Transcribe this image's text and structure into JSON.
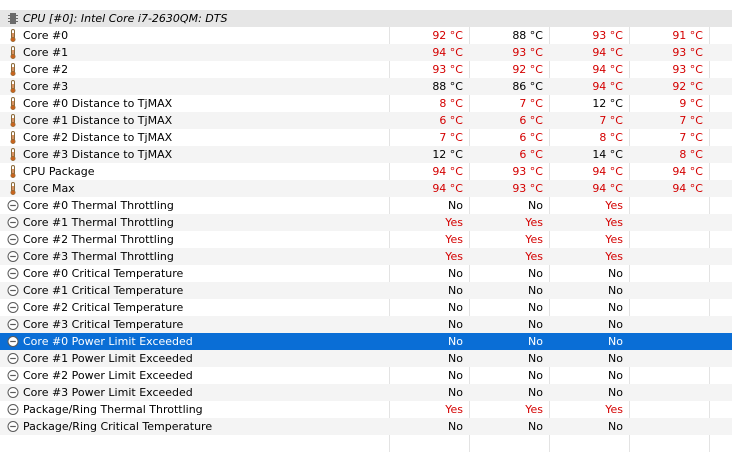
{
  "header": {
    "title": "CPU [#0]: Intel Core i7-2630QM: DTS",
    "icon": "chip-icon"
  },
  "rows": [
    {
      "label": "Core #0",
      "icon": "thermometer-icon",
      "values": [
        "92 °C",
        "88 °C",
        "93 °C",
        "91 °C"
      ],
      "red": [
        true,
        false,
        true,
        true
      ]
    },
    {
      "label": "Core #1",
      "icon": "thermometer-icon",
      "values": [
        "94 °C",
        "93 °C",
        "94 °C",
        "93 °C"
      ],
      "red": [
        true,
        true,
        true,
        true
      ]
    },
    {
      "label": "Core #2",
      "icon": "thermometer-icon",
      "values": [
        "93 °C",
        "92 °C",
        "94 °C",
        "93 °C"
      ],
      "red": [
        true,
        true,
        true,
        true
      ]
    },
    {
      "label": "Core #3",
      "icon": "thermometer-icon",
      "values": [
        "88 °C",
        "86 °C",
        "94 °C",
        "92 °C"
      ],
      "red": [
        false,
        false,
        true,
        true
      ]
    },
    {
      "label": "Core #0 Distance to TjMAX",
      "icon": "thermometer-icon",
      "values": [
        "8 °C",
        "7 °C",
        "12 °C",
        "9 °C"
      ],
      "red": [
        true,
        true,
        false,
        true
      ]
    },
    {
      "label": "Core #1 Distance to TjMAX",
      "icon": "thermometer-icon",
      "values": [
        "6 °C",
        "6 °C",
        "7 °C",
        "7 °C"
      ],
      "red": [
        true,
        true,
        true,
        true
      ]
    },
    {
      "label": "Core #2 Distance to TjMAX",
      "icon": "thermometer-icon",
      "values": [
        "7 °C",
        "6 °C",
        "8 °C",
        "7 °C"
      ],
      "red": [
        true,
        true,
        true,
        true
      ]
    },
    {
      "label": "Core #3 Distance to TjMAX",
      "icon": "thermometer-icon",
      "values": [
        "12 °C",
        "6 °C",
        "14 °C",
        "8 °C"
      ],
      "red": [
        false,
        true,
        false,
        true
      ]
    },
    {
      "label": "CPU Package",
      "icon": "thermometer-icon",
      "values": [
        "94 °C",
        "93 °C",
        "94 °C",
        "94 °C"
      ],
      "red": [
        true,
        true,
        true,
        true
      ]
    },
    {
      "label": "Core Max",
      "icon": "thermometer-icon",
      "values": [
        "94 °C",
        "93 °C",
        "94 °C",
        "94 °C"
      ],
      "red": [
        true,
        true,
        true,
        true
      ]
    },
    {
      "label": "Core #0 Thermal Throttling",
      "icon": "status-circle-icon",
      "values": [
        "No",
        "No",
        "Yes",
        ""
      ],
      "red": [
        false,
        false,
        true,
        false
      ]
    },
    {
      "label": "Core #1 Thermal Throttling",
      "icon": "status-circle-icon",
      "values": [
        "Yes",
        "Yes",
        "Yes",
        ""
      ],
      "red": [
        true,
        true,
        true,
        false
      ]
    },
    {
      "label": "Core #2 Thermal Throttling",
      "icon": "status-circle-icon",
      "values": [
        "Yes",
        "Yes",
        "Yes",
        ""
      ],
      "red": [
        true,
        true,
        true,
        false
      ]
    },
    {
      "label": "Core #3 Thermal Throttling",
      "icon": "status-circle-icon",
      "values": [
        "Yes",
        "Yes",
        "Yes",
        ""
      ],
      "red": [
        true,
        true,
        true,
        false
      ]
    },
    {
      "label": "Core #0 Critical Temperature",
      "icon": "status-circle-icon",
      "values": [
        "No",
        "No",
        "No",
        ""
      ],
      "red": [
        false,
        false,
        false,
        false
      ]
    },
    {
      "label": "Core #1 Critical Temperature",
      "icon": "status-circle-icon",
      "values": [
        "No",
        "No",
        "No",
        ""
      ],
      "red": [
        false,
        false,
        false,
        false
      ]
    },
    {
      "label": "Core #2 Critical Temperature",
      "icon": "status-circle-icon",
      "values": [
        "No",
        "No",
        "No",
        ""
      ],
      "red": [
        false,
        false,
        false,
        false
      ]
    },
    {
      "label": "Core #3 Critical Temperature",
      "icon": "status-circle-icon",
      "values": [
        "No",
        "No",
        "No",
        ""
      ],
      "red": [
        false,
        false,
        false,
        false
      ]
    },
    {
      "label": "Core #0 Power Limit Exceeded",
      "icon": "status-circle-icon",
      "values": [
        "No",
        "No",
        "No",
        ""
      ],
      "red": [
        false,
        false,
        false,
        false
      ],
      "selected": true
    },
    {
      "label": "Core #1 Power Limit Exceeded",
      "icon": "status-circle-icon",
      "values": [
        "No",
        "No",
        "No",
        ""
      ],
      "red": [
        false,
        false,
        false,
        false
      ]
    },
    {
      "label": "Core #2 Power Limit Exceeded",
      "icon": "status-circle-icon",
      "values": [
        "No",
        "No",
        "No",
        ""
      ],
      "red": [
        false,
        false,
        false,
        false
      ]
    },
    {
      "label": "Core #3 Power Limit Exceeded",
      "icon": "status-circle-icon",
      "values": [
        "No",
        "No",
        "No",
        ""
      ],
      "red": [
        false,
        false,
        false,
        false
      ]
    },
    {
      "label": "Package/Ring Thermal Throttling",
      "icon": "status-circle-icon",
      "values": [
        "Yes",
        "Yes",
        "Yes",
        ""
      ],
      "red": [
        true,
        true,
        true,
        false
      ]
    },
    {
      "label": "Package/Ring Critical Temperature",
      "icon": "status-circle-icon",
      "values": [
        "No",
        "No",
        "No",
        ""
      ],
      "red": [
        false,
        false,
        false,
        false
      ]
    }
  ],
  "colors": {
    "selection": "#0a6ed6",
    "alert_red": "#d40000",
    "header_bg": "#e6e6e6",
    "alt_row_bg": "#f4f4f4"
  }
}
